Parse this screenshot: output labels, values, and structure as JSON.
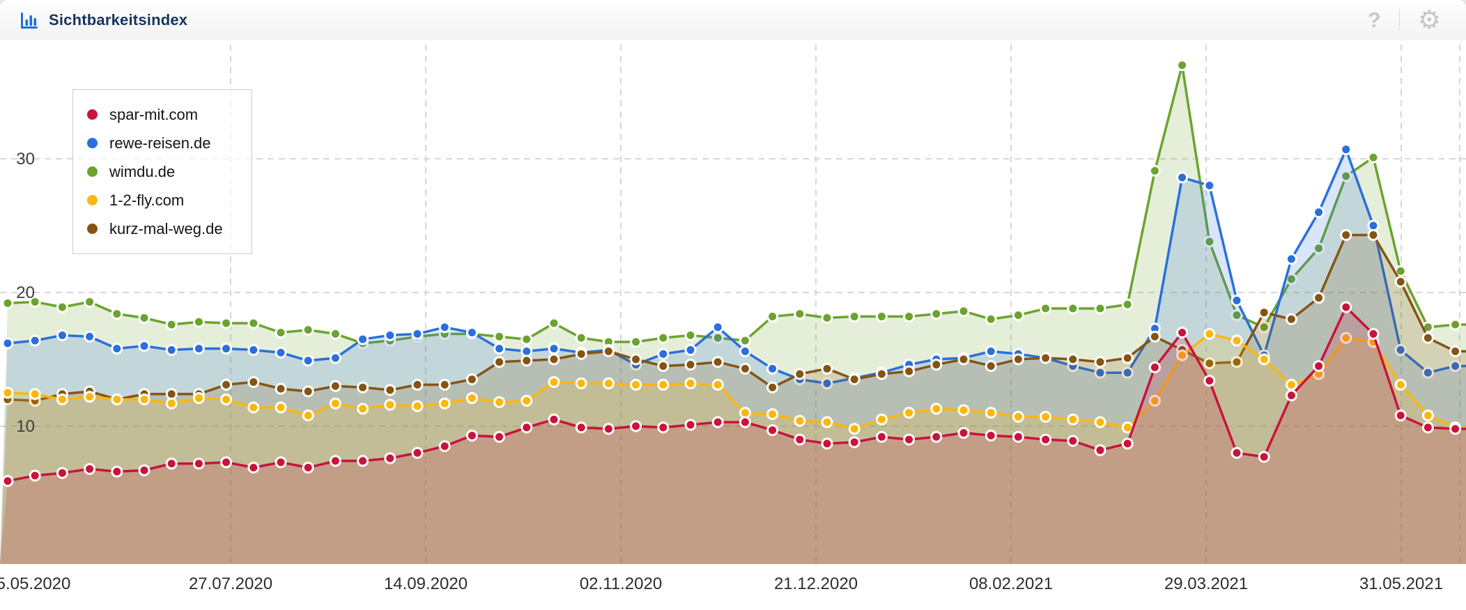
{
  "header": {
    "title": "Sichtbarkeitsindex",
    "help_label": "?",
    "settings_glyph": "⚙"
  },
  "colors": {
    "title_text": "#16355e",
    "header_icon_blue": "#1d6fe0",
    "grid_line": "#d7d7d7",
    "axis_tick_text": "#2d2d2d",
    "y_tick_text": "#3d3d3d"
  },
  "chart_data": {
    "type": "line",
    "title": "Sichtbarkeitsindex",
    "xlabel": "",
    "ylabel": "",
    "x_tick_labels": [
      "5.05.2020",
      "27.07.2020",
      "14.09.2020",
      "02.11.2020",
      "21.12.2020",
      "08.02.2021",
      "29.03.2021",
      "31.05.2021"
    ],
    "y_ticks": [
      10,
      20,
      30
    ],
    "ylim": [
      0,
      38.9
    ],
    "grid": "dashed",
    "legend_position": "top-left",
    "point_style": "filled-circle-white-ring",
    "area_fill": true,
    "series": [
      {
        "name": "spar-mit.com",
        "color": "#c9133b",
        "values": [
          5.9,
          6.3,
          6.5,
          6.8,
          6.6,
          6.7,
          7.2,
          7.2,
          7.3,
          6.9,
          7.3,
          6.9,
          7.4,
          7.4,
          7.6,
          8.0,
          8.5,
          9.3,
          9.2,
          9.9,
          10.5,
          9.9,
          9.8,
          10.0,
          9.9,
          10.1,
          10.3,
          10.3,
          9.7,
          9.0,
          8.7,
          8.8,
          9.2,
          9.0,
          9.2,
          9.5,
          9.3,
          9.2,
          9.0,
          8.9,
          8.2,
          8.7,
          14.4,
          17.0,
          13.4,
          8.0,
          7.7,
          12.3,
          14.5,
          18.9,
          16.9,
          10.8,
          9.9,
          9.8
        ]
      },
      {
        "name": "rewe-reisen.de",
        "color": "#2a6fdb",
        "values": [
          16.2,
          16.4,
          16.8,
          16.7,
          15.8,
          16.0,
          15.7,
          15.8,
          15.8,
          15.7,
          15.5,
          14.9,
          15.1,
          16.5,
          16.8,
          16.9,
          17.4,
          17.0,
          15.8,
          15.6,
          15.8,
          15.5,
          15.7,
          14.6,
          15.4,
          15.7,
          17.4,
          15.6,
          14.3,
          13.5,
          13.2,
          13.6,
          14.0,
          14.6,
          15.0,
          15.1,
          15.6,
          15.4,
          15.1,
          14.5,
          14.0,
          14.0,
          17.3,
          28.6,
          28.0,
          19.4,
          15.3,
          22.5,
          26.0,
          30.7,
          25.0,
          15.7,
          14.0,
          14.5
        ]
      },
      {
        "name": "wimdu.de",
        "color": "#6ca32f",
        "values": [
          19.2,
          19.3,
          18.9,
          19.3,
          18.4,
          18.1,
          17.6,
          17.8,
          17.7,
          17.7,
          17.0,
          17.2,
          16.9,
          16.2,
          16.4,
          16.7,
          16.9,
          16.9,
          16.7,
          16.5,
          17.7,
          16.6,
          16.3,
          16.3,
          16.6,
          16.8,
          16.6,
          16.4,
          18.2,
          18.4,
          18.1,
          18.2,
          18.2,
          18.2,
          18.4,
          18.6,
          18.0,
          18.3,
          18.8,
          18.8,
          18.8,
          19.1,
          29.1,
          37.0,
          23.8,
          18.3,
          17.4,
          21.0,
          23.3,
          28.7,
          30.1,
          21.6,
          17.4,
          17.6
        ]
      },
      {
        "name": "1-2-fly.com",
        "color": "#fab70f",
        "values": [
          12.5,
          12.4,
          12.0,
          12.2,
          12.0,
          12.0,
          11.7,
          12.1,
          12.0,
          11.4,
          11.4,
          10.8,
          11.7,
          11.3,
          11.6,
          11.5,
          11.7,
          12.1,
          11.8,
          11.9,
          13.3,
          13.2,
          13.2,
          13.1,
          13.1,
          13.2,
          13.1,
          11.0,
          10.9,
          10.4,
          10.3,
          9.8,
          10.5,
          11.0,
          11.3,
          11.2,
          11.0,
          10.7,
          10.7,
          10.5,
          10.3,
          9.9,
          11.9,
          15.3,
          16.9,
          16.4,
          15.0,
          13.1,
          13.9,
          16.6,
          16.3,
          13.1,
          10.8,
          9.9
        ]
      },
      {
        "name": "kurz-mal-weg.de",
        "color": "#855413",
        "values": [
          12.0,
          11.9,
          12.4,
          12.6,
          12.0,
          12.4,
          12.4,
          12.4,
          13.1,
          13.3,
          12.8,
          12.6,
          13.0,
          12.9,
          12.7,
          13.1,
          13.1,
          13.5,
          14.8,
          14.9,
          15.0,
          15.4,
          15.6,
          15.0,
          14.5,
          14.6,
          14.8,
          14.3,
          12.9,
          13.9,
          14.3,
          13.5,
          13.9,
          14.1,
          14.6,
          15.0,
          14.5,
          15.0,
          15.1,
          15.0,
          14.8,
          15.1,
          16.7,
          15.7,
          14.7,
          14.8,
          18.5,
          18.0,
          19.6,
          24.3,
          24.3,
          20.8,
          16.6,
          15.6
        ]
      }
    ]
  }
}
